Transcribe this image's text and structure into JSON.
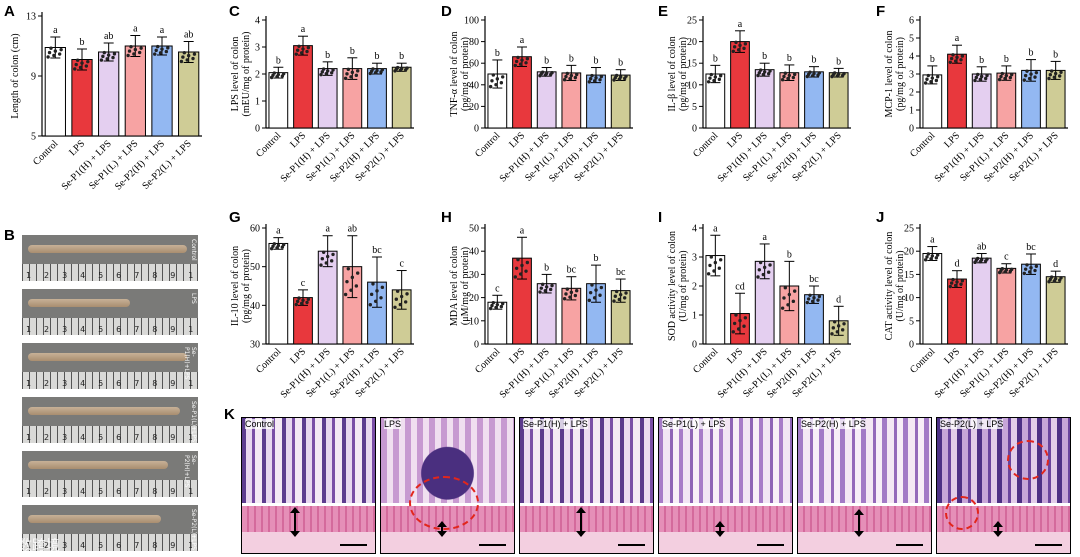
{
  "panel_letters": {
    "a": "A",
    "b": "B",
    "c": "C",
    "d": "D",
    "e": "E",
    "f": "F",
    "g": "G",
    "h": "H",
    "i": "I",
    "j": "J",
    "k": "K"
  },
  "groups": [
    "Control",
    "LPS",
    "Se-P1(H) + LPS",
    "Se-P1(L) + LPS",
    "Se-P2(H) + LPS",
    "Se-P2(L) + LPS"
  ],
  "colors": {
    "fills": [
      "#ffffff",
      "#e8383d",
      "#e4cff0",
      "#f7a3a3",
      "#93b8f2",
      "#cfcc96"
    ],
    "error": "#000000",
    "axis": "#000000"
  },
  "chart_data": [
    {
      "id": "A",
      "type": "bar",
      "ylabel": "Length of colon (cm)",
      "ylim": [
        5,
        13
      ],
      "yticks": [
        5,
        9,
        13
      ],
      "values": [
        10.9,
        10.1,
        10.6,
        11.0,
        11.0,
        10.6
      ],
      "errors": [
        0.7,
        0.7,
        0.6,
        0.7,
        0.6,
        0.7
      ],
      "letters": [
        "a",
        "b",
        "ab",
        "a",
        "a",
        "ab"
      ]
    },
    {
      "id": "C",
      "type": "bar",
      "ylabel": "LPS level of colon (mEU/mg of protein)",
      "ylim": [
        0,
        4
      ],
      "yticks": [
        0,
        1,
        2,
        3,
        4
      ],
      "values": [
        2.05,
        3.05,
        2.2,
        2.2,
        2.2,
        2.25
      ],
      "errors": [
        0.2,
        0.35,
        0.25,
        0.4,
        0.2,
        0.15
      ],
      "letters": [
        "b",
        "a",
        "b",
        "b",
        "b",
        "b"
      ]
    },
    {
      "id": "D",
      "type": "bar",
      "ylabel": "TNF-α level of colon (pg/mg of protein)",
      "ylim": [
        0,
        100
      ],
      "yticks": [
        0,
        20,
        40,
        60,
        80,
        100
      ],
      "values": [
        50,
        66,
        52,
        51,
        49,
        49
      ],
      "errors": [
        13,
        9,
        4,
        7,
        7,
        5
      ],
      "letters": [
        "b",
        "a",
        "b",
        "b",
        "b",
        "b"
      ]
    },
    {
      "id": "E",
      "type": "bar",
      "ylabel": "IL-β level of colon (pg/mg of protein)",
      "ylim": [
        0,
        25
      ],
      "yticks": [
        0,
        5,
        10,
        15,
        20,
        25
      ],
      "values": [
        12.5,
        20,
        13.5,
        12.8,
        13,
        12.8
      ],
      "errors": [
        2,
        2.5,
        1.5,
        1.8,
        1.2,
        1
      ],
      "letters": [
        "b",
        "a",
        "b",
        "b",
        "b",
        "b"
      ]
    },
    {
      "id": "F",
      "type": "bar",
      "ylabel": "MCP-1 level of colon (pg/mg of protein)",
      "ylim": [
        0,
        6
      ],
      "yticks": [
        0,
        1,
        2,
        3,
        4,
        5,
        6
      ],
      "values": [
        2.95,
        4.1,
        3.0,
        3.05,
        3.2,
        3.2
      ],
      "errors": [
        0.5,
        0.5,
        0.4,
        0.4,
        0.6,
        0.5
      ],
      "letters": [
        "b",
        "a",
        "b",
        "b",
        "b",
        "b"
      ]
    },
    {
      "id": "G",
      "type": "bar",
      "ylabel": "IL-10 level of colon (pg/mg of protein)",
      "ylim": [
        30,
        60
      ],
      "yticks": [
        30,
        40,
        50,
        60
      ],
      "values": [
        56,
        42,
        54,
        50,
        46,
        44
      ],
      "errors": [
        1.5,
        2,
        4,
        8,
        6.5,
        5
      ],
      "letters": [
        "a",
        "c",
        "a",
        "ab",
        "bc",
        "c"
      ]
    },
    {
      "id": "H",
      "type": "bar",
      "ylabel": "MDA level of colon (μM/mg of protein)",
      "ylim": [
        0,
        50
      ],
      "yticks": [
        0,
        10,
        20,
        30,
        40,
        50
      ],
      "values": [
        18,
        37,
        26,
        24,
        26,
        23
      ],
      "errors": [
        3,
        9,
        4,
        5,
        8,
        5
      ],
      "letters": [
        "c",
        "a",
        "b",
        "bc",
        "b",
        "bc"
      ]
    },
    {
      "id": "I",
      "type": "bar",
      "ylabel": "SOD activity level of colon (U/mg of protein)",
      "ylim": [
        0,
        4
      ],
      "yticks": [
        0,
        1,
        2,
        3,
        4
      ],
      "values": [
        3.05,
        1.05,
        2.85,
        2.0,
        1.7,
        0.8
      ],
      "errors": [
        0.7,
        0.7,
        0.6,
        0.85,
        0.3,
        0.5
      ],
      "letters": [
        "a",
        "cd",
        "a",
        "b",
        "bc",
        "d"
      ]
    },
    {
      "id": "J",
      "type": "bar",
      "ylabel": "CAT activity level of colon (U/mg of protein)",
      "ylim": [
        0,
        25
      ],
      "yticks": [
        0,
        5,
        10,
        15,
        20,
        25
      ],
      "values": [
        19.5,
        14,
        18.5,
        16.3,
        17.2,
        14.5
      ],
      "errors": [
        1.5,
        1.8,
        1,
        1,
        2.2,
        1.2
      ],
      "letters": [
        "a",
        "d",
        "ab",
        "c",
        "bc",
        "d"
      ]
    }
  ],
  "colon_rows": {
    "tags": [
      "Control",
      "LPS",
      "Se-P1(H)+LPS",
      "Se-P1(L)+LPS",
      "Se-P2(H)+LPS",
      "Se-P2(L)+LPS"
    ],
    "ruler_text": "1 2 3 4 5 6 7 8 9 10 11 12 13",
    "length_cm": [
      12.5,
      8,
      12.5,
      12,
      11,
      10.5
    ]
  },
  "histology": {
    "titles": [
      "Control",
      "LPS",
      "Se-P1(H) + LPS",
      "Se-P1(L) + LPS",
      "Se-P2(H) + LPS",
      "Se-P2(L) + LPS"
    ]
  },
  "watermark": "大数跨境"
}
